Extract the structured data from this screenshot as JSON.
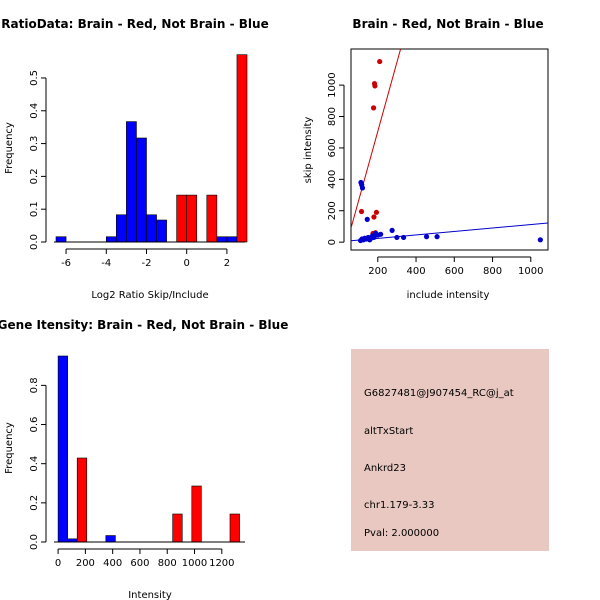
{
  "chart_data": [
    {
      "type": "bar",
      "title": "RatioData: Brain - Red, Not Brain - Blue",
      "xlabel": "Log2 Ratio Skip/Include",
      "ylabel": "Frequency",
      "xlim": [
        -6.6,
        2.9
      ],
      "ylim": [
        0,
        0.57
      ],
      "xticks": [
        -6,
        -4,
        -2,
        0,
        2
      ],
      "xtick_labels": [
        "-6",
        "-4",
        "-2",
        "0",
        "2"
      ],
      "yticks": [
        0,
        0.1,
        0.2,
        0.3,
        0.4,
        0.5
      ],
      "ytick_labels": [
        "0.0",
        "0.1",
        "0.2",
        "0.3",
        "0.4",
        "0.5"
      ],
      "series": [
        {
          "name": "Not Brain",
          "color": "#0000ff",
          "bins": [
            {
              "x0": -6.5,
              "x1": -6.0,
              "value": 0.016
            },
            {
              "x0": -4.0,
              "x1": -3.5,
              "value": 0.016
            },
            {
              "x0": -3.5,
              "x1": -3.0,
              "value": 0.083
            },
            {
              "x0": -3.0,
              "x1": -2.5,
              "value": 0.367
            },
            {
              "x0": -2.5,
              "x1": -2.0,
              "value": 0.317
            },
            {
              "x0": -2.0,
              "x1": -1.5,
              "value": 0.083
            },
            {
              "x0": -1.5,
              "x1": -1.0,
              "value": 0.067
            },
            {
              "x0": 0.0,
              "x1": 0.5,
              "value": 0.016
            },
            {
              "x0": 1.5,
              "x1": 2.0,
              "value": 0.016
            },
            {
              "x0": 2.0,
              "x1": 2.5,
              "value": 0.016
            }
          ]
        },
        {
          "name": "Brain",
          "color": "#ff0000",
          "bins": [
            {
              "x0": -0.5,
              "x1": 0.0,
              "value": 0.143
            },
            {
              "x0": 0.0,
              "x1": 0.5,
              "value": 0.143
            },
            {
              "x0": 1.0,
              "x1": 1.5,
              "value": 0.143
            },
            {
              "x0": 2.5,
              "x1": 3.0,
              "value": 0.571
            }
          ]
        }
      ]
    },
    {
      "type": "scatter",
      "title": "Brain - Red, Not Brain - Blue",
      "xlabel": "include intensity",
      "ylabel": "skip intensity",
      "xlim": [
        60,
        1090
      ],
      "ylim": [
        -50,
        1230
      ],
      "xticks": [
        200,
        400,
        600,
        800,
        1000
      ],
      "xtick_labels": [
        "200",
        "400",
        "600",
        "800",
        "1000"
      ],
      "yticks": [
        0,
        200,
        400,
        600,
        800,
        1000
      ],
      "ytick_labels": [
        "0",
        "200",
        "400",
        "600",
        "800",
        "1000"
      ],
      "series": [
        {
          "name": "Brain",
          "color": "#cc0000",
          "points": [
            {
              "x": 210,
              "y": 1150
            },
            {
              "x": 183,
              "y": 1010
            },
            {
              "x": 185,
              "y": 995
            },
            {
              "x": 178,
              "y": 855
            },
            {
              "x": 115,
              "y": 195
            },
            {
              "x": 180,
              "y": 160
            },
            {
              "x": 193,
              "y": 190
            },
            {
              "x": 175,
              "y": 55
            },
            {
              "x": 188,
              "y": 60
            }
          ],
          "fit_line": {
            "slope": 4.4,
            "intercept": -175
          }
        },
        {
          "name": "Not Brain",
          "color": "#0000cc",
          "points": [
            {
              "x": 112,
              "y": 380
            },
            {
              "x": 116,
              "y": 365
            },
            {
              "x": 120,
              "y": 345
            },
            {
              "x": 145,
              "y": 145
            },
            {
              "x": 110,
              "y": 10
            },
            {
              "x": 118,
              "y": 20
            },
            {
              "x": 125,
              "y": 15
            },
            {
              "x": 132,
              "y": 25
            },
            {
              "x": 140,
              "y": 20
            },
            {
              "x": 150,
              "y": 30
            },
            {
              "x": 158,
              "y": 15
            },
            {
              "x": 165,
              "y": 25
            },
            {
              "x": 172,
              "y": 40
            },
            {
              "x": 180,
              "y": 30
            },
            {
              "x": 188,
              "y": 55
            },
            {
              "x": 200,
              "y": 45
            },
            {
              "x": 215,
              "y": 50
            },
            {
              "x": 275,
              "y": 75
            },
            {
              "x": 300,
              "y": 30
            },
            {
              "x": 335,
              "y": 30
            },
            {
              "x": 455,
              "y": 35
            },
            {
              "x": 510,
              "y": 35
            },
            {
              "x": 1050,
              "y": 15
            }
          ],
          "fit_line": {
            "slope": 0.11,
            "intercept": 2
          }
        }
      ]
    },
    {
      "type": "bar",
      "title": "Gene Itensity: Brain - Red, Not Brain - Blue",
      "xlabel": "Intensity",
      "ylabel": "Frequency",
      "xlim": [
        -30,
        1370
      ],
      "ylim": [
        0,
        0.95
      ],
      "xticks": [
        0,
        200,
        400,
        600,
        800,
        1000,
        1200
      ],
      "xtick_labels": [
        "0",
        "200",
        "400",
        "600",
        "800",
        "1000",
        "1200"
      ],
      "yticks": [
        0,
        0.2,
        0.4,
        0.6,
        0.8
      ],
      "ytick_labels": [
        "0.0",
        "0.2",
        "0.4",
        "0.6",
        "0.8"
      ],
      "series": [
        {
          "name": "Not Brain",
          "color": "#0000ff",
          "bins": [
            {
              "x0": 0,
              "x1": 70,
              "value": 0.95
            },
            {
              "x0": 70,
              "x1": 140,
              "value": 0.016
            },
            {
              "x0": 350,
              "x1": 420,
              "value": 0.033
            }
          ]
        },
        {
          "name": "Brain",
          "color": "#ff0000",
          "bins": [
            {
              "x0": 140,
              "x1": 210,
              "value": 0.429
            },
            {
              "x0": 840,
              "x1": 910,
              "value": 0.143
            },
            {
              "x0": 980,
              "x1": 1050,
              "value": 0.286
            },
            {
              "x0": 1260,
              "x1": 1330,
              "value": 0.143
            }
          ]
        }
      ]
    }
  ],
  "info_box": {
    "background": "#e8c8c0",
    "probe_id": "G6827481@J907454_RC@j_at",
    "event_type": "altTxStart",
    "gene": "Ankrd23",
    "location": "chr1.179-3.33",
    "pval": "Pval: 2.000000",
    "pval_color": "#cc0000"
  }
}
